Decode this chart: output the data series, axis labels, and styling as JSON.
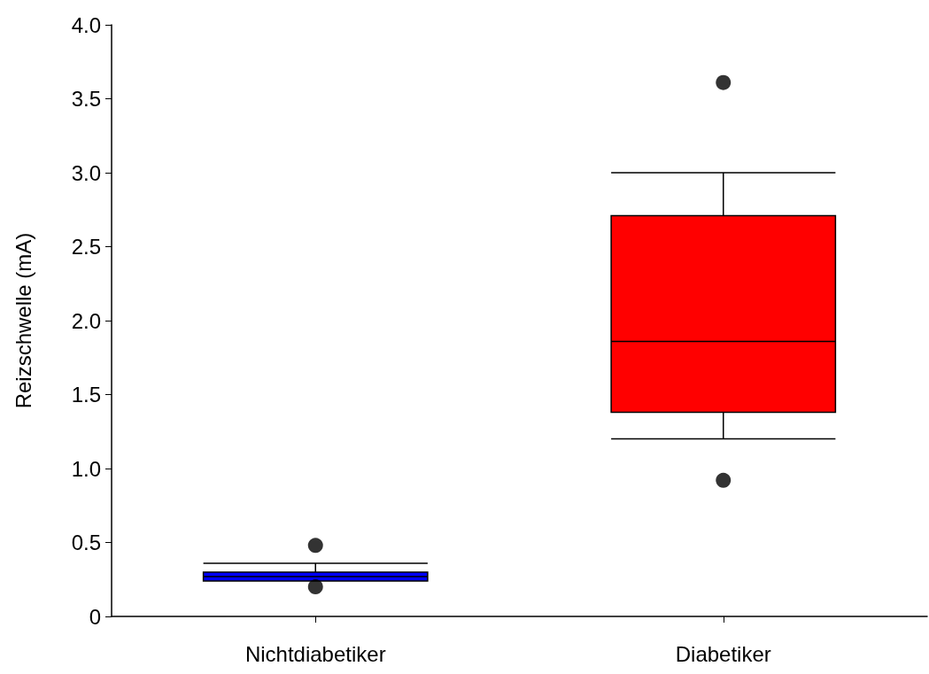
{
  "chart_data": {
    "type": "box",
    "ylabel": "Reizschwelle (mA)",
    "categories": [
      "Nichtdiabetiker",
      "Diabetiker"
    ],
    "boxes": [
      {
        "low": 0.24,
        "q1": 0.24,
        "median": 0.27,
        "q3": 0.3,
        "high": 0.36,
        "outliers": [
          0.48,
          0.2
        ]
      },
      {
        "low": 1.2,
        "q1": 1.38,
        "median": 1.86,
        "q3": 2.71,
        "high": 3.0,
        "outliers": [
          3.61,
          0.92
        ]
      }
    ],
    "colors": [
      "#0000ff",
      "#ff0000"
    ],
    "ylim": [
      0,
      4
    ],
    "yticks": [
      0,
      {
        "value": 0.5,
        "label": "0.5"
      },
      {
        "value": 1,
        "label": "1.0"
      },
      {
        "value": 1.5,
        "label": "1.5"
      },
      {
        "value": 2,
        "label": "2.0"
      },
      {
        "value": 2.5,
        "label": "2.5"
      },
      {
        "value": 3,
        "label": "3.0"
      },
      {
        "value": 3.5,
        "label": "3.5"
      },
      {
        "value": 4,
        "label": "4.0"
      }
    ],
    "grid": false,
    "marker": "circle"
  }
}
